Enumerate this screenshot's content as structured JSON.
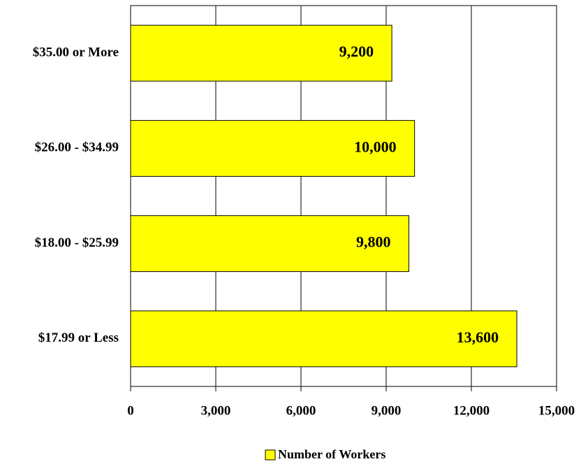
{
  "chart_data": {
    "type": "bar",
    "orientation": "horizontal",
    "categories": [
      "$35.00 or More",
      "$26.00 - $34.99",
      "$18.00 - $25.99",
      "$17.99 or Less"
    ],
    "series": [
      {
        "name": "Number of Workers",
        "color": "#ffff00",
        "values": [
          9200,
          10000,
          9800,
          13600
        ],
        "value_labels": [
          "9,200",
          "10,000",
          "9,800",
          "13,600"
        ]
      }
    ],
    "xlim": [
      0,
      15000
    ],
    "xticks": [
      0,
      {
        "value": 3000,
        "label": "3,000"
      },
      {
        "value": 6000,
        "label": "6,000"
      },
      {
        "value": 9000,
        "label": "9,000"
      },
      {
        "value": 12000,
        "label": "12,000"
      },
      {
        "value": 15000,
        "label": "15,000"
      }
    ],
    "grid": true,
    "legend": "bottom"
  }
}
